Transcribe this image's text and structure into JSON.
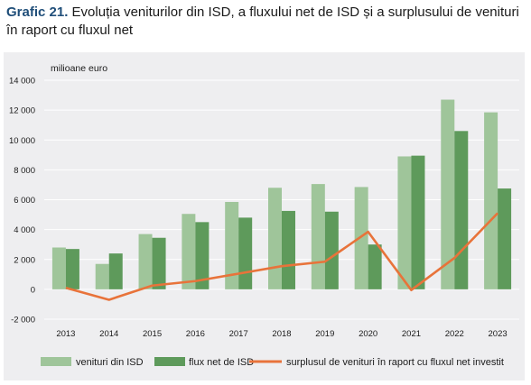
{
  "title": {
    "label": "Grafic 21.",
    "text": "Evoluția veniturilor din ISD, a fluxului net de ISD și a surplusului de venituri în raport cu fluxul net"
  },
  "colors": {
    "panel_bg": "#eeeef0",
    "venituri": "#9fc59a",
    "flux": "#5e9a5b",
    "surplus": "#e8733a"
  },
  "chart_data": {
    "type": "bar",
    "unit_label": "milioane euro",
    "categories": [
      "2013",
      "2014",
      "2015",
      "2016",
      "2017",
      "2018",
      "2019",
      "2020",
      "2021",
      "2022",
      "2023"
    ],
    "ylim": [
      -2000,
      14000
    ],
    "yticks": [
      -2000,
      0,
      2000,
      4000,
      6000,
      8000,
      10000,
      12000,
      14000
    ],
    "ytick_labels": [
      "-2 000",
      "0",
      "2 000",
      "4 000",
      "6 000",
      "8 000",
      "10 000",
      "12 000",
      "14 000"
    ],
    "grid": true,
    "legend_position": "bottom",
    "series": [
      {
        "name": "venituri din ISD",
        "kind": "bar",
        "values": [
          2800,
          1700,
          3700,
          5050,
          5850,
          6800,
          7050,
          6850,
          8900,
          12700,
          11850
        ]
      },
      {
        "name": "flux net de ISD",
        "kind": "bar",
        "values": [
          2700,
          2400,
          3450,
          4500,
          4800,
          5250,
          5200,
          3000,
          8950,
          10600,
          6750
        ]
      },
      {
        "name": "surplusul de venituri în raport cu fluxul net investit",
        "kind": "line",
        "values": [
          100,
          -700,
          250,
          550,
          1050,
          1550,
          1850,
          3850,
          -50,
          2100,
          5100
        ]
      }
    ]
  }
}
